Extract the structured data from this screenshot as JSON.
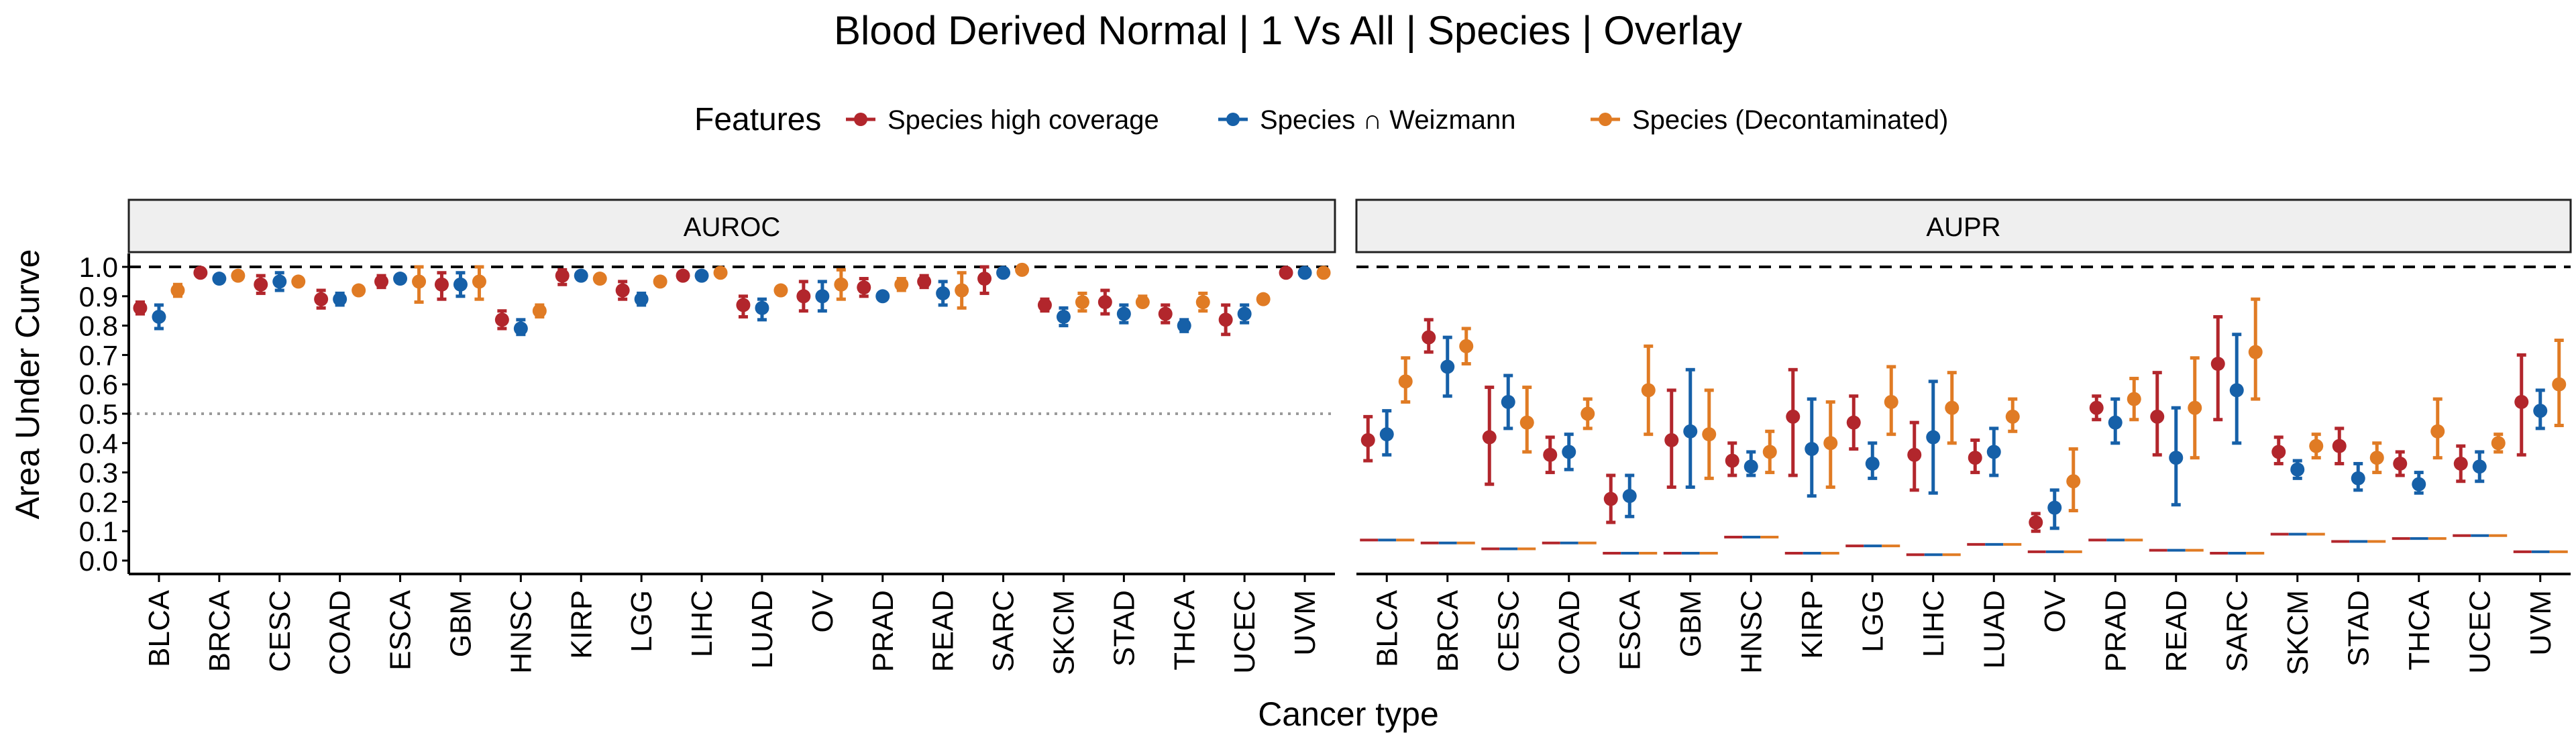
{
  "chart_data": {
    "type": "scatter",
    "title": "Blood Derived Normal | 1 Vs All | Species | Overlay",
    "xlabel": "Cancer type",
    "ylabel": "Area Under Curve",
    "ylim": [
      0,
      1
    ],
    "yticks": [
      "0.0",
      "0.1",
      "0.2",
      "0.3",
      "0.4",
      "0.5",
      "0.6",
      "0.7",
      "0.8",
      "0.9",
      "1.0"
    ],
    "reference_lines": {
      "dashed": 1.0,
      "dotted_auroc": 0.5
    },
    "legend": {
      "title": "Features",
      "position": "top",
      "entries": [
        "Species high coverage",
        "Species ∩ Weizmann",
        "Species (Decontaminated)"
      ]
    },
    "colors": [
      "#b2262c",
      "#1660a8",
      "#e07b24"
    ],
    "categories": [
      "BLCA",
      "BRCA",
      "CESC",
      "COAD",
      "ESCA",
      "GBM",
      "HNSC",
      "KIRP",
      "LGG",
      "LIHC",
      "LUAD",
      "OV",
      "PRAD",
      "READ",
      "SARC",
      "SKCM",
      "STAD",
      "THCA",
      "UCEC",
      "UVM"
    ],
    "panels": [
      {
        "name": "AUROC",
        "series": [
          {
            "name": "Species high coverage",
            "values": [
              0.86,
              0.98,
              0.94,
              0.89,
              0.95,
              0.94,
              0.82,
              0.97,
              0.92,
              0.97,
              0.87,
              0.9,
              0.93,
              0.95,
              0.96,
              0.87,
              0.88,
              0.84,
              0.82,
              0.98
            ],
            "lower": [
              0.84,
              0.97,
              0.91,
              0.86,
              0.93,
              0.89,
              0.79,
              0.94,
              0.89,
              0.96,
              0.83,
              0.85,
              0.9,
              0.93,
              0.91,
              0.85,
              0.84,
              0.81,
              0.77,
              0.97
            ],
            "upper": [
              0.88,
              0.99,
              0.97,
              0.92,
              0.97,
              0.98,
              0.85,
              0.99,
              0.95,
              0.98,
              0.9,
              0.95,
              0.96,
              0.97,
              1.0,
              0.89,
              0.92,
              0.87,
              0.87,
              0.99
            ]
          },
          {
            "name": "Species ∩ Weizmann",
            "values": [
              0.83,
              0.96,
              0.95,
              0.89,
              0.96,
              0.94,
              0.79,
              0.97,
              0.89,
              0.97,
              0.86,
              0.9,
              0.9,
              0.91,
              0.98,
              0.83,
              0.84,
              0.8,
              0.84,
              0.98
            ],
            "lower": [
              0.79,
              0.95,
              0.92,
              0.87,
              0.95,
              0.9,
              0.77,
              0.96,
              0.87,
              0.96,
              0.82,
              0.85,
              0.89,
              0.87,
              0.97,
              0.8,
              0.81,
              0.78,
              0.81,
              0.97
            ],
            "upper": [
              0.87,
              0.97,
              0.98,
              0.91,
              0.97,
              0.98,
              0.82,
              0.98,
              0.91,
              0.98,
              0.89,
              0.95,
              0.91,
              0.95,
              0.99,
              0.86,
              0.87,
              0.82,
              0.87,
              0.99
            ]
          },
          {
            "name": "Species (Decontaminated)",
            "values": [
              0.92,
              0.97,
              0.95,
              0.92,
              0.95,
              0.95,
              0.85,
              0.96,
              0.95,
              0.98,
              0.92,
              0.94,
              0.94,
              0.92,
              0.99,
              0.88,
              0.88,
              0.88,
              0.89,
              0.98
            ],
            "lower": [
              0.9,
              0.96,
              0.94,
              0.91,
              0.88,
              0.89,
              0.83,
              0.95,
              0.94,
              0.97,
              0.91,
              0.89,
              0.92,
              0.86,
              0.98,
              0.85,
              0.87,
              0.85,
              0.88,
              0.97
            ],
            "upper": [
              0.94,
              0.98,
              0.96,
              0.93,
              1.0,
              1.0,
              0.87,
              0.97,
              0.96,
              0.99,
              0.93,
              0.99,
              0.96,
              0.98,
              1.0,
              0.91,
              0.9,
              0.91,
              0.9,
              0.99
            ]
          }
        ]
      },
      {
        "name": "AUPR",
        "baselines": [
          0.07,
          0.06,
          0.04,
          0.06,
          0.025,
          0.025,
          0.08,
          0.025,
          0.05,
          0.02,
          0.055,
          0.03,
          0.07,
          0.035,
          0.025,
          0.09,
          0.065,
          0.075,
          0.085,
          0.03
        ],
        "series": [
          {
            "name": "Species high coverage",
            "values": [
              0.41,
              0.76,
              0.42,
              0.36,
              0.21,
              0.41,
              0.34,
              0.49,
              0.47,
              0.36,
              0.35,
              0.13,
              0.52,
              0.49,
              0.67,
              0.37,
              0.39,
              0.33,
              0.33,
              0.54
            ],
            "lower": [
              0.34,
              0.71,
              0.26,
              0.3,
              0.13,
              0.25,
              0.29,
              0.29,
              0.38,
              0.24,
              0.3,
              0.1,
              0.48,
              0.36,
              0.48,
              0.33,
              0.33,
              0.29,
              0.27,
              0.36
            ],
            "upper": [
              0.49,
              0.82,
              0.59,
              0.42,
              0.29,
              0.58,
              0.4,
              0.65,
              0.56,
              0.47,
              0.41,
              0.16,
              0.56,
              0.64,
              0.83,
              0.42,
              0.45,
              0.37,
              0.39,
              0.7
            ]
          },
          {
            "name": "Species ∩ Weizmann",
            "values": [
              0.43,
              0.66,
              0.54,
              0.37,
              0.22,
              0.44,
              0.32,
              0.38,
              0.33,
              0.42,
              0.37,
              0.18,
              0.47,
              0.35,
              0.58,
              0.31,
              0.28,
              0.26,
              0.32,
              0.51
            ],
            "lower": [
              0.36,
              0.56,
              0.45,
              0.31,
              0.15,
              0.25,
              0.29,
              0.22,
              0.28,
              0.23,
              0.29,
              0.11,
              0.4,
              0.19,
              0.4,
              0.28,
              0.24,
              0.23,
              0.27,
              0.45
            ],
            "upper": [
              0.51,
              0.76,
              0.63,
              0.43,
              0.29,
              0.65,
              0.37,
              0.55,
              0.4,
              0.61,
              0.45,
              0.24,
              0.55,
              0.52,
              0.77,
              0.34,
              0.33,
              0.3,
              0.37,
              0.58
            ]
          },
          {
            "name": "Species (Decontaminated)",
            "values": [
              0.61,
              0.73,
              0.47,
              0.5,
              0.58,
              0.43,
              0.37,
              0.4,
              0.54,
              0.52,
              0.49,
              0.27,
              0.55,
              0.52,
              0.71,
              0.39,
              0.35,
              0.44,
              0.4,
              0.6
            ],
            "lower": [
              0.54,
              0.67,
              0.37,
              0.45,
              0.43,
              0.28,
              0.3,
              0.25,
              0.43,
              0.4,
              0.44,
              0.17,
              0.48,
              0.35,
              0.55,
              0.35,
              0.3,
              0.35,
              0.37,
              0.46
            ],
            "upper": [
              0.69,
              0.79,
              0.59,
              0.55,
              0.73,
              0.58,
              0.44,
              0.54,
              0.66,
              0.64,
              0.55,
              0.38,
              0.62,
              0.69,
              0.89,
              0.43,
              0.4,
              0.55,
              0.43,
              0.75
            ]
          }
        ]
      }
    ]
  }
}
